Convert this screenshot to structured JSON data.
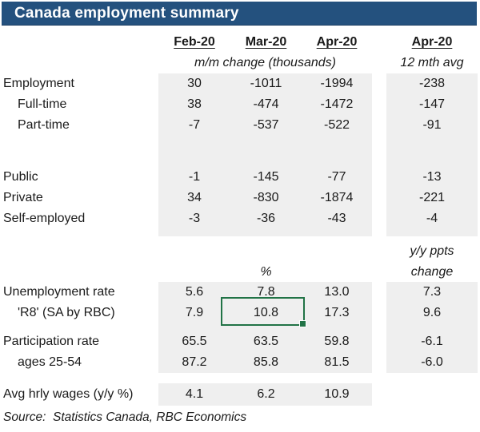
{
  "title": "Canada employment summary",
  "header": {
    "months": [
      "Feb-20",
      "Mar-20",
      "Apr-20",
      "Apr-20"
    ],
    "mm_subtitle": "m/m change (thousands)",
    "avg_subtitle": "12 mth avg"
  },
  "mid_headers": {
    "pct": "%",
    "yy_line1": "y/y ppts",
    "yy_line2": "change"
  },
  "rows": [
    {
      "label": "Employment",
      "values": [
        "30",
        "-1011",
        "-1994",
        "-238"
      ]
    },
    {
      "label": "Full-time",
      "values": [
        "38",
        "-474",
        "-1472",
        "-147"
      ]
    },
    {
      "label": "Part-time",
      "values": [
        "-7",
        "-537",
        "-522",
        "-91"
      ]
    },
    {
      "label": "Public",
      "values": [
        "-1",
        "-145",
        "-77",
        "-13"
      ]
    },
    {
      "label": "Private",
      "values": [
        "34",
        "-830",
        "-1874",
        "-221"
      ]
    },
    {
      "label": "Self-employed",
      "values": [
        "-3",
        "-36",
        "-43",
        "-4"
      ]
    },
    {
      "label": "Unemployment rate",
      "values": [
        "5.6",
        "7.8",
        "13.0",
        "7.3"
      ]
    },
    {
      "label": "'R8' (SA by RBC)",
      "values": [
        "7.9",
        "10.8",
        "17.3",
        "9.6"
      ]
    },
    {
      "label": "Participation rate",
      "values": [
        "65.5",
        "63.5",
        "59.8",
        "-6.1"
      ]
    },
    {
      "label": "ages 25-54",
      "values": [
        "87.2",
        "85.8",
        "81.5",
        "-6.0"
      ]
    },
    {
      "label": "Avg hrly wages (y/y %)",
      "values": [
        "4.1",
        "6.2",
        "10.9",
        ""
      ]
    }
  ],
  "selection": {
    "active_cell_value": "10.8"
  },
  "source": "Source:  Statistics Canada, RBC Economics",
  "colors": {
    "title_bar": "#24517E",
    "shade": "#EFEFEF",
    "selection_green": "#217346",
    "text": "#1A1A1A"
  }
}
